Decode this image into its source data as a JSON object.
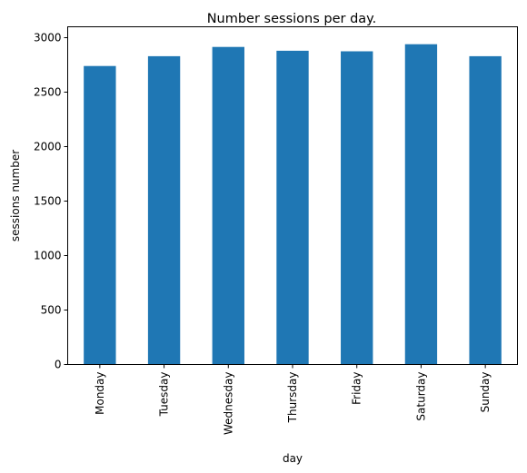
{
  "chart_data": {
    "type": "bar",
    "title": "Number sessions per day.",
    "xlabel": "day",
    "ylabel": "sessions number",
    "categories": [
      "Monday",
      "Tuesday",
      "Wednesday",
      "Thursday",
      "Friday",
      "Saturday",
      "Sunday"
    ],
    "values": [
      2740,
      2830,
      2915,
      2880,
      2875,
      2940,
      2830
    ],
    "ylim": [
      0,
      3100
    ],
    "yticks": [
      0,
      500,
      1000,
      1500,
      2000,
      2500,
      3000
    ],
    "grid": false,
    "bar_color": "#1f77b4"
  }
}
